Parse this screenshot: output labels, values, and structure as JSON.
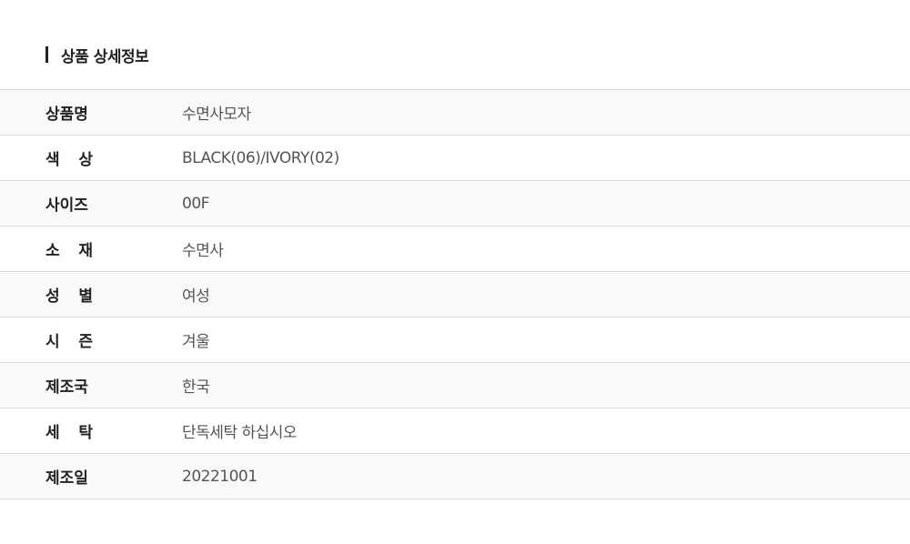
{
  "section_title": "상품 상세정보",
  "rows": [
    {
      "label": "상품명",
      "value": "수면사모자"
    },
    {
      "label": "색 상",
      "value": "BLACK(06)/IVORY(02)"
    },
    {
      "label": "사이즈",
      "value": "00F"
    },
    {
      "label": "소 재",
      "value": "수면사"
    },
    {
      "label": "성 별",
      "value": "여성"
    },
    {
      "label": "시 즌",
      "value": "겨울"
    },
    {
      "label": "제조국",
      "value": "한국"
    },
    {
      "label": "세 탁",
      "value": "단독세탁 하십시오"
    },
    {
      "label": "제조일",
      "value": "20221001"
    }
  ]
}
